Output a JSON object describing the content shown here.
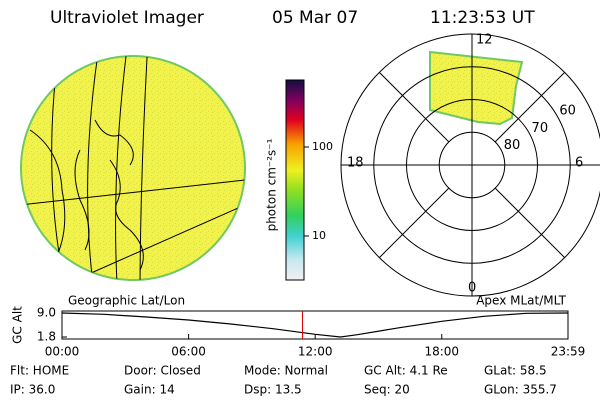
{
  "header": {
    "title": "Ultraviolet Imager",
    "date": "05 Mar 07",
    "time": "11:23:53 UT"
  },
  "map_label": "Geographic Lat/Lon",
  "polar": {
    "label": "Apex MLat/MLT",
    "rlim": [
      90,
      50
    ],
    "rticks": [
      80,
      70,
      60
    ],
    "angle_labels": {
      "top": "12",
      "left": "18",
      "right": "6",
      "bottom": "0"
    }
  },
  "colorbar": {
    "label": "photon cm⁻²s⁻¹",
    "log": true,
    "lim": [
      3.2,
      566
    ],
    "ticks": [
      10,
      100
    ]
  },
  "chart_data": {
    "type": "line",
    "ylabel": "GC Alt",
    "x": [
      0,
      2,
      4,
      6,
      8,
      10,
      12,
      13.2,
      14,
      16,
      18,
      20,
      22,
      23.983
    ],
    "series": [
      {
        "color": "#000000",
        "values": [
          9.0,
          8.6,
          7.8,
          6.9,
          5.7,
          4.3,
          2.6,
          1.8,
          2.5,
          4.6,
          6.5,
          8.0,
          8.9,
          9.0
        ]
      }
    ],
    "marker": {
      "x": 11.398,
      "color": "#e00000"
    },
    "xlim": [
      0,
      23.983
    ],
    "xticks": [
      {
        "value": 0,
        "label": "00:00"
      },
      {
        "value": 6,
        "label": "06:00"
      },
      {
        "value": 12,
        "label": "12:00"
      },
      {
        "value": 18,
        "label": "18:00"
      },
      {
        "value": 23.983,
        "label": "23:59"
      }
    ],
    "ylim": [
      1.8,
      9.0
    ],
    "yticks": [
      {
        "value": 1.8,
        "label": "1.8"
      },
      {
        "value": 9.0,
        "label": "9.0"
      }
    ]
  },
  "status": [
    [
      "Flt: HOME",
      "Door: Closed",
      "Mode: Normal",
      "GC Alt: 4.1 Re",
      "GLat: 58.5"
    ],
    [
      "IP: 36.0",
      "Gain: 14",
      "Dsp: 13.5",
      "Seq: 20",
      "GLon: 355.7"
    ]
  ]
}
